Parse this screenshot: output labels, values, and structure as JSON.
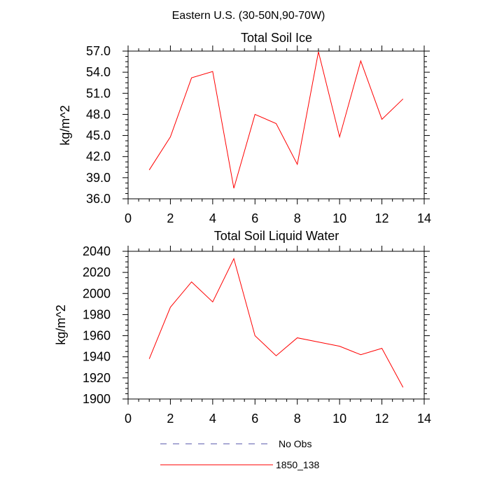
{
  "figure": {
    "suptitle": "Eastern U.S. (30-50N,90-70W)"
  },
  "legend": {
    "entries": [
      {
        "label": "No Obs",
        "color": "#5555aa",
        "dash": "dashed"
      },
      {
        "label": "1850_138",
        "color": "#ff0000",
        "dash": "solid"
      }
    ]
  },
  "chart_data": [
    {
      "type": "line",
      "title": "Total Soil Ice",
      "xlabel": "",
      "ylabel": "kg/m^2",
      "xlim": [
        0,
        14
      ],
      "ylim": [
        36,
        57
      ],
      "xticks": [
        0,
        2,
        4,
        6,
        8,
        10,
        12,
        14
      ],
      "xtick_labels": [
        "0",
        "2",
        "4",
        "6",
        "8",
        "10",
        "12",
        "14"
      ],
      "yticks": [
        36,
        39,
        42,
        45,
        48,
        51,
        54,
        57
      ],
      "ytick_labels": [
        "36.0",
        "39.0",
        "42.0",
        "45.0",
        "48.0",
        "51.0",
        "54.0",
        "57.0"
      ],
      "grid": false,
      "series": [
        {
          "name": "1850_138",
          "color": "#ff0000",
          "x": [
            1,
            2,
            3,
            4,
            5,
            6,
            7,
            8,
            9,
            10,
            11,
            12,
            13
          ],
          "y": [
            40.1,
            44.8,
            53.2,
            54.1,
            37.5,
            48.0,
            46.7,
            40.9,
            56.9,
            44.8,
            55.6,
            47.3,
            50.2
          ]
        }
      ]
    },
    {
      "type": "line",
      "title": "Total Soil Liquid Water",
      "xlabel": "",
      "ylabel": "kg/m^2",
      "xlim": [
        0,
        14
      ],
      "ylim": [
        1900,
        2040
      ],
      "xticks": [
        0,
        2,
        4,
        6,
        8,
        10,
        12,
        14
      ],
      "xtick_labels": [
        "0",
        "2",
        "4",
        "6",
        "8",
        "10",
        "12",
        "14"
      ],
      "yticks": [
        1900,
        1920,
        1940,
        1960,
        1980,
        2000,
        2020,
        2040
      ],
      "ytick_labels": [
        "1900",
        "1920",
        "1940",
        "1960",
        "1980",
        "2000",
        "2020",
        "2040"
      ],
      "grid": false,
      "series": [
        {
          "name": "1850_138",
          "color": "#ff0000",
          "x": [
            1,
            2,
            3,
            4,
            5,
            6,
            7,
            8,
            9,
            10,
            11,
            12,
            13
          ],
          "y": [
            1938,
            1987,
            2011,
            1992,
            2033,
            1960,
            1941,
            1958,
            1954,
            1950,
            1942,
            1948,
            1911
          ]
        }
      ]
    }
  ]
}
